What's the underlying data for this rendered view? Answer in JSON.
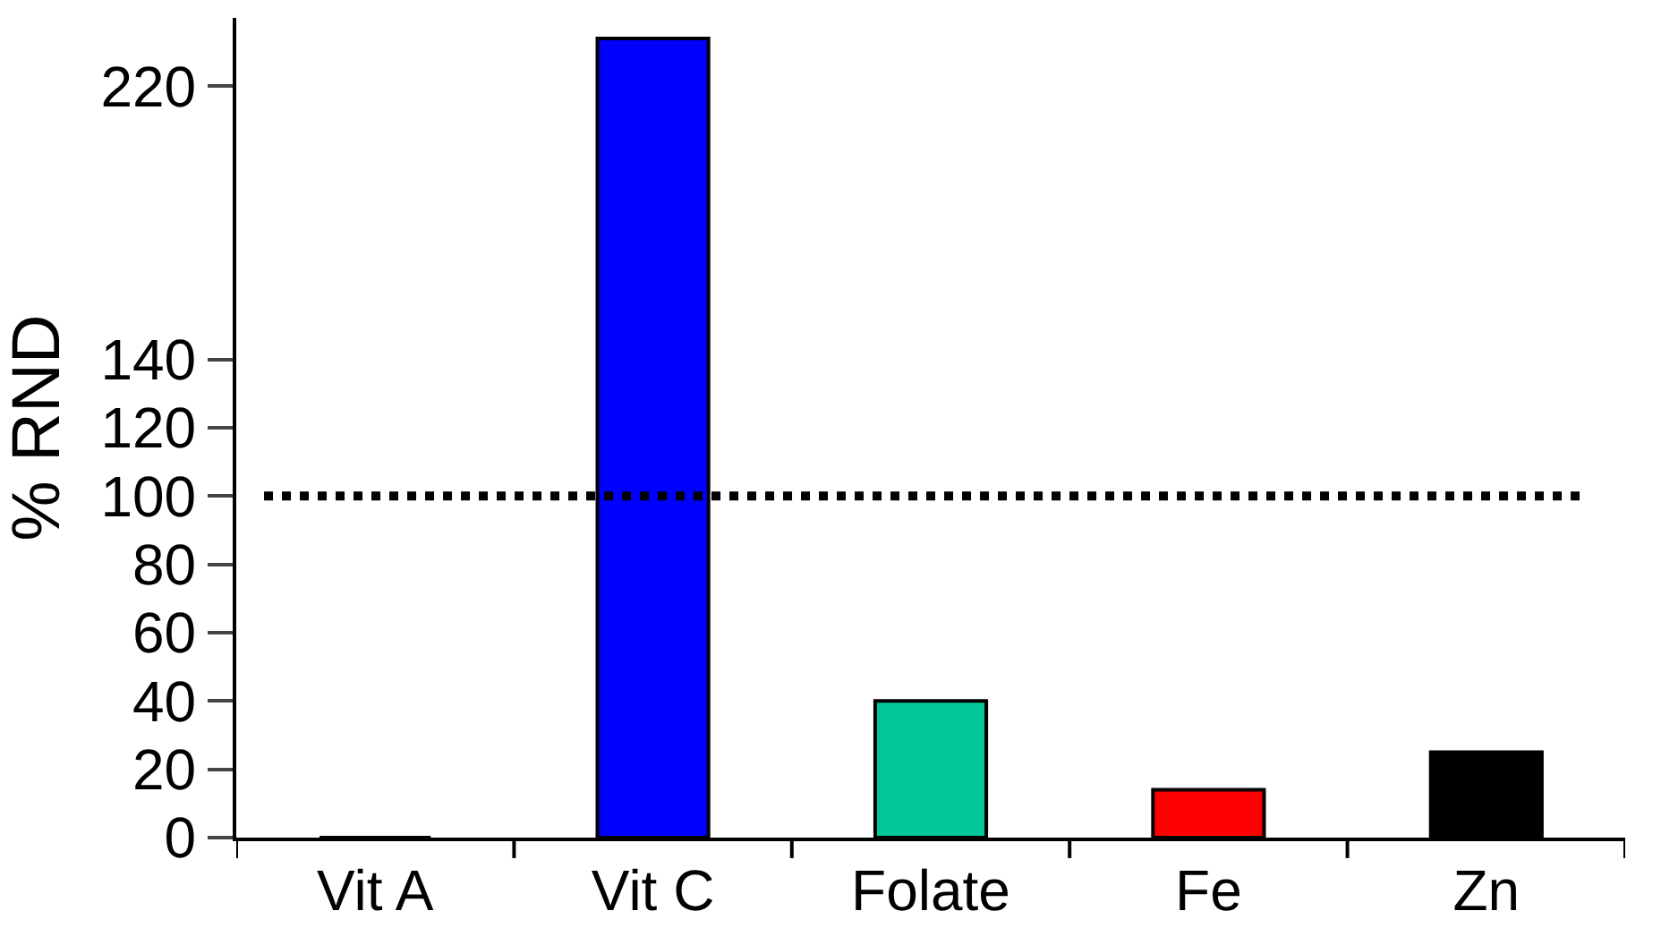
{
  "chart_data": {
    "type": "bar",
    "ylabel": "% RND",
    "categories": [
      "Vit A",
      "Vit C",
      "Folate",
      "Fe",
      "Zn"
    ],
    "values": [
      0,
      234,
      40,
      14,
      25
    ],
    "colors": [
      "#000000",
      "#0000ff",
      "#00c896",
      "#ff0000",
      "#000000"
    ],
    "ylim": [
      0,
      240
    ],
    "yticks": [
      0,
      20,
      40,
      60,
      80,
      100,
      120,
      140,
      220
    ],
    "ref_lines": [
      {
        "axis": "y",
        "value": 100,
        "color": "#000000",
        "line_style": "dotted"
      }
    ]
  }
}
